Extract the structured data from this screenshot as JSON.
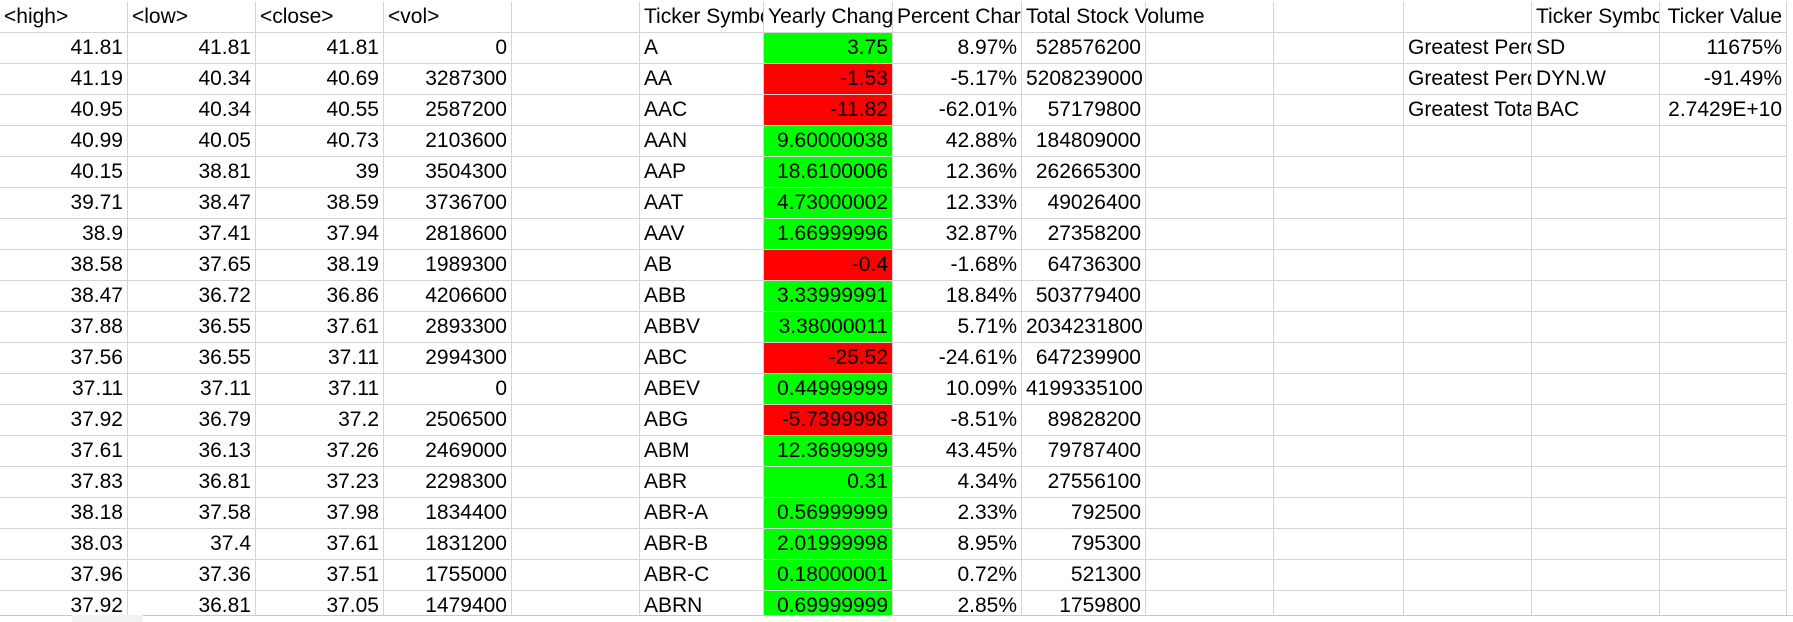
{
  "headers": {
    "high": "<high>",
    "low": "<low>",
    "close": "<close>",
    "vol": "<vol>",
    "ticker_symbol": "Ticker Symbo",
    "yearly_change": "Yearly Chang",
    "percent_change": "Percent Char",
    "total_stock_volume": "Total Stock Volume",
    "summary_ticker_symbol": "Ticker Symbo",
    "summary_ticker_value": "Ticker Value"
  },
  "rows": [
    {
      "high": "41.81",
      "low": "41.81",
      "close": "41.81",
      "vol": "0",
      "ticker": "A",
      "yearly": "3.75",
      "yearly_color": "#00ff00",
      "percent": "8.97%",
      "total": "528576200"
    },
    {
      "high": "41.19",
      "low": "40.34",
      "close": "40.69",
      "vol": "3287300",
      "ticker": "AA",
      "yearly": "-1.53",
      "yearly_color": "#ff0000",
      "percent": "-5.17%",
      "total": "5208239000"
    },
    {
      "high": "40.95",
      "low": "40.34",
      "close": "40.55",
      "vol": "2587200",
      "ticker": "AAC",
      "yearly": "-11.82",
      "yearly_color": "#ff0000",
      "percent": "-62.01%",
      "total": "57179800"
    },
    {
      "high": "40.99",
      "low": "40.05",
      "close": "40.73",
      "vol": "2103600",
      "ticker": "AAN",
      "yearly": "9.60000038",
      "yearly_color": "#00ff00",
      "percent": "42.88%",
      "total": "184809000"
    },
    {
      "high": "40.15",
      "low": "38.81",
      "close": "39",
      "vol": "3504300",
      "ticker": "AAP",
      "yearly": "18.6100006",
      "yearly_color": "#00ff00",
      "percent": "12.36%",
      "total": "262665300"
    },
    {
      "high": "39.71",
      "low": "38.47",
      "close": "38.59",
      "vol": "3736700",
      "ticker": "AAT",
      "yearly": "4.73000002",
      "yearly_color": "#00ff00",
      "percent": "12.33%",
      "total": "49026400"
    },
    {
      "high": "38.9",
      "low": "37.41",
      "close": "37.94",
      "vol": "2818600",
      "ticker": "AAV",
      "yearly": "1.66999996",
      "yearly_color": "#00ff00",
      "percent": "32.87%",
      "total": "27358200"
    },
    {
      "high": "38.58",
      "low": "37.65",
      "close": "38.19",
      "vol": "1989300",
      "ticker": "AB",
      "yearly": "-0.4",
      "yearly_color": "#ff0000",
      "percent": "-1.68%",
      "total": "64736300"
    },
    {
      "high": "38.47",
      "low": "36.72",
      "close": "36.86",
      "vol": "4206600",
      "ticker": "ABB",
      "yearly": "3.33999991",
      "yearly_color": "#00ff00",
      "percent": "18.84%",
      "total": "503779400"
    },
    {
      "high": "37.88",
      "low": "36.55",
      "close": "37.61",
      "vol": "2893300",
      "ticker": "ABBV",
      "yearly": "3.38000011",
      "yearly_color": "#00ff00",
      "percent": "5.71%",
      "total": "2034231800"
    },
    {
      "high": "37.56",
      "low": "36.55",
      "close": "37.11",
      "vol": "2994300",
      "ticker": "ABC",
      "yearly": "-25.52",
      "yearly_color": "#ff0000",
      "percent": "-24.61%",
      "total": "647239900"
    },
    {
      "high": "37.11",
      "low": "37.11",
      "close": "37.11",
      "vol": "0",
      "ticker": "ABEV",
      "yearly": "0.44999999",
      "yearly_color": "#00ff00",
      "percent": "10.09%",
      "total": "4199335100"
    },
    {
      "high": "37.92",
      "low": "36.79",
      "close": "37.2",
      "vol": "2506500",
      "ticker": "ABG",
      "yearly": "-5.7399998",
      "yearly_color": "#ff0000",
      "percent": "-8.51%",
      "total": "89828200"
    },
    {
      "high": "37.61",
      "low": "36.13",
      "close": "37.26",
      "vol": "2469000",
      "ticker": "ABM",
      "yearly": "12.3699999",
      "yearly_color": "#00ff00",
      "percent": "43.45%",
      "total": "79787400"
    },
    {
      "high": "37.83",
      "low": "36.81",
      "close": "37.23",
      "vol": "2298300",
      "ticker": "ABR",
      "yearly": "0.31",
      "yearly_color": "#00ff00",
      "percent": "4.34%",
      "total": "27556100"
    },
    {
      "high": "38.18",
      "low": "37.58",
      "close": "37.98",
      "vol": "1834400",
      "ticker": "ABR-A",
      "yearly": "0.56999999",
      "yearly_color": "#00ff00",
      "percent": "2.33%",
      "total": "792500"
    },
    {
      "high": "38.03",
      "low": "37.4",
      "close": "37.61",
      "vol": "1831200",
      "ticker": "ABR-B",
      "yearly": "2.01999998",
      "yearly_color": "#00ff00",
      "percent": "8.95%",
      "total": "795300"
    },
    {
      "high": "37.96",
      "low": "37.36",
      "close": "37.51",
      "vol": "1755000",
      "ticker": "ABR-C",
      "yearly": "0.18000001",
      "yearly_color": "#00ff00",
      "percent": "0.72%",
      "total": "521300"
    },
    {
      "high": "37.92",
      "low": "36.81",
      "close": "37.05",
      "vol": "1479400",
      "ticker": "ABRN",
      "yearly": "0.69999999",
      "yearly_color": "#00ff00",
      "percent": "2.85%",
      "total": "1759800"
    }
  ],
  "summary": [
    {
      "label": "Greatest Perc",
      "ticker": "SD",
      "value": "11675%"
    },
    {
      "label": "Greatest Perc",
      "ticker": "DYN.W",
      "value": "-91.49%"
    },
    {
      "label": "Greatest Tota",
      "ticker": "BAC",
      "value": "2.7429E+10"
    }
  ]
}
